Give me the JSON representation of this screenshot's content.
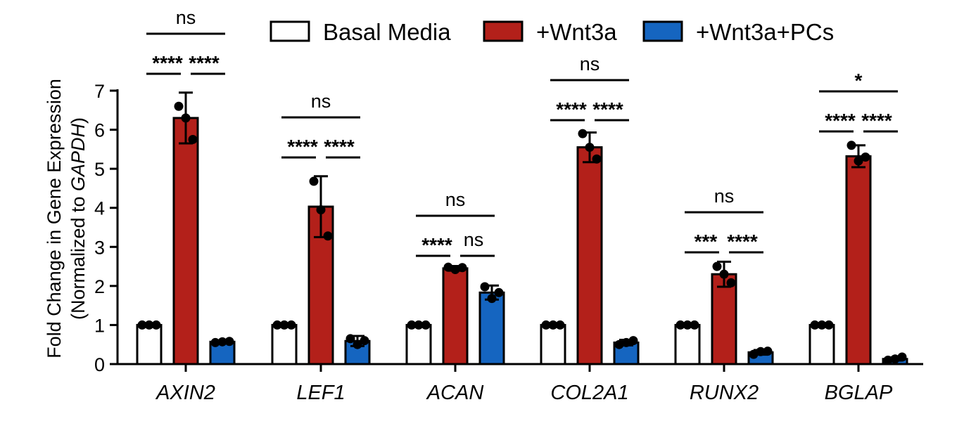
{
  "chart_data": {
    "type": "bar",
    "ylabel_line1": "Fold Change in Gene Expression",
    "ylabel_line2_pre": "(Normalized to ",
    "ylabel_line2_italic": "GAPDH",
    "ylabel_line2_post": ")",
    "ylim": [
      0,
      7
    ],
    "yticks": [
      "0",
      "1",
      "2",
      "3",
      "4",
      "5",
      "6",
      "7"
    ],
    "grid": false,
    "legend_position": "top",
    "categories": [
      "AXIN2",
      "LEF1",
      "ACAN",
      "COL2A1",
      "RUNX2",
      "BGLAP"
    ],
    "series": [
      {
        "name": "Basal Media",
        "color": "#ffffff",
        "values": [
          1.0,
          1.0,
          1.0,
          1.0,
          1.0,
          1.0
        ],
        "errors": [
          0.0,
          0.0,
          0.0,
          0.0,
          0.0,
          0.0
        ],
        "points": [
          [
            1.0,
            1.0,
            1.0
          ],
          [
            1.0,
            1.0,
            1.0
          ],
          [
            1.0,
            1.0,
            1.0
          ],
          [
            1.0,
            1.0,
            1.0
          ],
          [
            1.0,
            1.0,
            1.0
          ],
          [
            1.0,
            1.0,
            1.0
          ]
        ]
      },
      {
        "name": "+Wnt3a",
        "color": "#b3201a",
        "values": [
          6.3,
          4.03,
          2.45,
          5.55,
          2.3,
          5.32
        ],
        "errors": [
          0.65,
          0.78,
          0.06,
          0.38,
          0.32,
          0.28
        ],
        "points": [
          [
            6.6,
            6.3,
            5.75
          ],
          [
            4.68,
            3.95,
            3.28
          ],
          [
            2.48,
            2.42,
            2.47
          ],
          [
            5.9,
            5.55,
            5.25
          ],
          [
            2.5,
            2.3,
            2.08
          ],
          [
            5.6,
            5.2,
            5.3
          ]
        ]
      },
      {
        "name": "+Wnt3a+PCs",
        "color": "#1565c0",
        "values": [
          0.57,
          0.59,
          1.83,
          0.55,
          0.3,
          0.13
        ],
        "errors": [
          0.03,
          0.13,
          0.18,
          0.07,
          0.06,
          0.04
        ],
        "points": [
          [
            0.55,
            0.57,
            0.58
          ],
          [
            0.65,
            0.5,
            0.6
          ],
          [
            1.98,
            1.68,
            1.83
          ],
          [
            0.5,
            0.55,
            0.6
          ],
          [
            0.25,
            0.32,
            0.33
          ],
          [
            0.1,
            0.13,
            0.18
          ]
        ]
      }
    ],
    "significance": [
      {
        "left": "****",
        "right": "****",
        "outer": "ns"
      },
      {
        "left": "****",
        "right": "****",
        "outer": "ns"
      },
      {
        "left": "****",
        "right": "ns",
        "outer": "ns"
      },
      {
        "left": "****",
        "right": "****",
        "outer": "ns"
      },
      {
        "left": "***",
        "right": "****",
        "outer": "ns"
      },
      {
        "left": "****",
        "right": "****",
        "outer": "*"
      }
    ]
  }
}
